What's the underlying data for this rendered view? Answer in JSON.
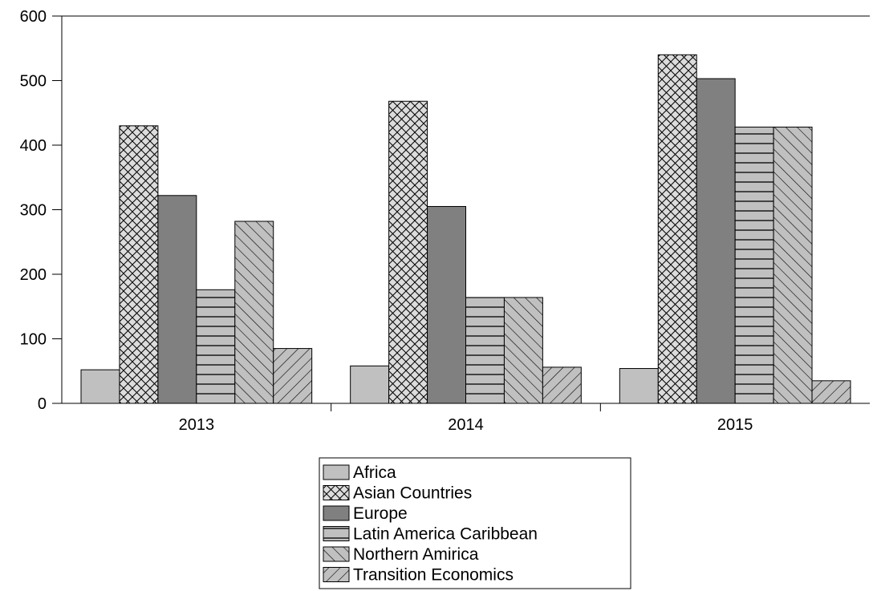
{
  "chart_data": {
    "type": "bar",
    "title": "",
    "xlabel": "",
    "ylabel": "",
    "categories": [
      "2013",
      "2014",
      "2015"
    ],
    "ylim": [
      0,
      600
    ],
    "yticks": [
      0,
      100,
      200,
      300,
      400,
      500,
      600
    ],
    "grid": false,
    "legend_position": "bottom-center",
    "series": [
      {
        "name": "Africa",
        "values": [
          52,
          58,
          54
        ],
        "color": "#c0c0c0",
        "pattern": "solid-light"
      },
      {
        "name": "Asian Countries",
        "values": [
          430,
          468,
          540
        ],
        "color": "#d9d9d9",
        "pattern": "crosshatch"
      },
      {
        "name": "Europe",
        "values": [
          322,
          305,
          503
        ],
        "color": "#808080",
        "pattern": "solid-dark"
      },
      {
        "name": "Latin America Caribbean",
        "values": [
          176,
          164,
          428
        ],
        "color": "#c0c0c0",
        "pattern": "horizontal-lines"
      },
      {
        "name": "Northern Amirica",
        "values": [
          282,
          164,
          428
        ],
        "color": "#c0c0c0",
        "pattern": "backslash-diagonal"
      },
      {
        "name": "Transition Economics",
        "values": [
          85,
          56,
          35
        ],
        "color": "#c0c0c0",
        "pattern": "slash-diagonal"
      }
    ]
  }
}
